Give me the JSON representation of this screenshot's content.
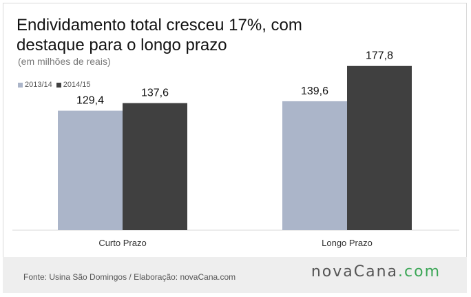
{
  "header": {
    "title": "Endividamento total cresceu 17%, com destaque para o longo prazo",
    "subtitle": "(em milhões de reais)"
  },
  "legend": [
    {
      "label": "2013/14",
      "color": "#abb5c9"
    },
    {
      "label": "2014/15",
      "color": "#404040"
    }
  ],
  "chart_data": {
    "type": "bar",
    "categories": [
      "Curto Prazo",
      "Longo Prazo"
    ],
    "series": [
      {
        "name": "2013/14",
        "values": [
          129.4,
          139.6
        ],
        "labels": [
          "129,4",
          "139,6"
        ],
        "color": "#abb5c9"
      },
      {
        "name": "2014/15",
        "values": [
          137.6,
          177.8
        ],
        "labels": [
          "137,6",
          "177,8"
        ],
        "color": "#404040"
      }
    ],
    "title": "Endividamento total cresceu 17%, com destaque para o longo prazo",
    "ylabel": "(em milhões de reais)",
    "ylim": [
      0,
      200
    ],
    "grid": false,
    "legend_position": "top-left"
  },
  "footer": {
    "source": "Fonte: Usina São Domingos / Elaboração: novaCana.com",
    "brand_name": "novaCana",
    "brand_suffix": ".com"
  }
}
